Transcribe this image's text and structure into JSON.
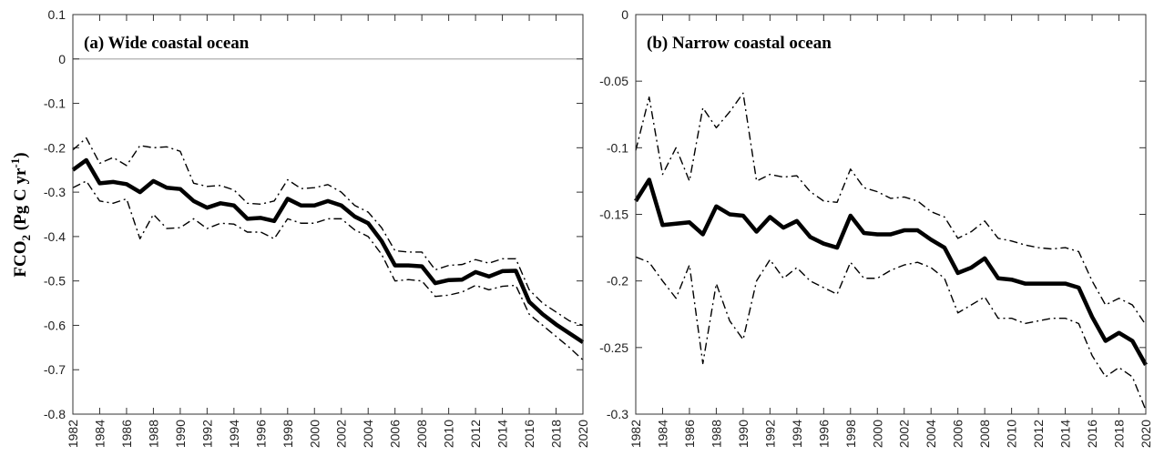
{
  "chart_data": [
    {
      "type": "line",
      "title": "(a) Wide coastal ocean",
      "ylabel_parts": [
        "FCO",
        "2",
        " (Pg C yr",
        "-1",
        ")"
      ],
      "x": [
        1982,
        1983,
        1984,
        1985,
        1986,
        1987,
        1988,
        1989,
        1990,
        1991,
        1992,
        1993,
        1994,
        1995,
        1996,
        1997,
        1998,
        1999,
        2000,
        2001,
        2002,
        2003,
        2004,
        2005,
        2006,
        2007,
        2008,
        2009,
        2010,
        2011,
        2012,
        2013,
        2014,
        2015,
        2016,
        2017,
        2018,
        2019,
        2020
      ],
      "xlim": [
        1982,
        2020
      ],
      "xticks": [
        1982,
        1984,
        1986,
        1988,
        1990,
        1992,
        1994,
        1996,
        1998,
        2000,
        2002,
        2004,
        2006,
        2008,
        2010,
        2012,
        2014,
        2016,
        2018,
        2020
      ],
      "ylim": [
        -0.8,
        0.1
      ],
      "yticks": [
        -0.8,
        -0.7,
        -0.6,
        -0.5,
        -0.4,
        -0.3,
        -0.2,
        -0.1,
        0,
        0.1
      ],
      "zero_line": true,
      "series": [
        {
          "color": "#000000",
          "style": "solid",
          "values": [
            -0.25,
            -0.228,
            -0.28,
            -0.277,
            -0.282,
            -0.3,
            -0.275,
            -0.29,
            -0.293,
            -0.32,
            -0.335,
            -0.325,
            -0.33,
            -0.36,
            -0.358,
            -0.365,
            -0.315,
            -0.33,
            -0.33,
            -0.32,
            -0.33,
            -0.355,
            -0.37,
            -0.41,
            -0.465,
            -0.465,
            -0.467,
            -0.505,
            -0.498,
            -0.497,
            -0.48,
            -0.49,
            -0.478,
            -0.477,
            -0.547,
            -0.575,
            -0.598,
            -0.618,
            -0.638
          ]
        },
        {
          "color": "#000000",
          "style": "dashdot",
          "values": [
            -0.205,
            -0.178,
            -0.235,
            -0.222,
            -0.24,
            -0.195,
            -0.2,
            -0.198,
            -0.208,
            -0.28,
            -0.287,
            -0.285,
            -0.295,
            -0.325,
            -0.327,
            -0.32,
            -0.272,
            -0.292,
            -0.29,
            -0.283,
            -0.3,
            -0.33,
            -0.345,
            -0.38,
            -0.432,
            -0.435,
            -0.435,
            -0.475,
            -0.465,
            -0.463,
            -0.452,
            -0.46,
            -0.45,
            -0.45,
            -0.52,
            -0.55,
            -0.57,
            -0.59,
            -0.6
          ]
        },
        {
          "color": "#000000",
          "style": "dashdot",
          "values": [
            -0.29,
            -0.275,
            -0.32,
            -0.325,
            -0.315,
            -0.405,
            -0.35,
            -0.382,
            -0.38,
            -0.36,
            -0.382,
            -0.37,
            -0.372,
            -0.39,
            -0.39,
            -0.405,
            -0.36,
            -0.37,
            -0.37,
            -0.36,
            -0.36,
            -0.385,
            -0.4,
            -0.44,
            -0.5,
            -0.497,
            -0.5,
            -0.535,
            -0.532,
            -0.525,
            -0.51,
            -0.52,
            -0.512,
            -0.51,
            -0.575,
            -0.6,
            -0.625,
            -0.65,
            -0.678
          ]
        }
      ]
    },
    {
      "type": "line",
      "title": "(b) Narrow coastal ocean",
      "x": [
        1982,
        1983,
        1984,
        1985,
        1986,
        1987,
        1988,
        1989,
        1990,
        1991,
        1992,
        1993,
        1994,
        1995,
        1996,
        1997,
        1998,
        1999,
        2000,
        2001,
        2002,
        2003,
        2004,
        2005,
        2006,
        2007,
        2008,
        2009,
        2010,
        2011,
        2012,
        2013,
        2014,
        2015,
        2016,
        2017,
        2018,
        2019,
        2020
      ],
      "xlim": [
        1982,
        2020
      ],
      "xticks": [
        1982,
        1984,
        1986,
        1988,
        1990,
        1992,
        1994,
        1996,
        1998,
        2000,
        2002,
        2004,
        2006,
        2008,
        2010,
        2012,
        2014,
        2016,
        2018,
        2020
      ],
      "ylim": [
        -0.3,
        0
      ],
      "yticks": [
        -0.3,
        -0.25,
        -0.2,
        -0.15,
        -0.1,
        -0.05,
        0
      ],
      "zero_line": false,
      "series": [
        {
          "color": "#000000",
          "style": "solid",
          "values": [
            -0.14,
            -0.124,
            -0.158,
            -0.157,
            -0.156,
            -0.165,
            -0.144,
            -0.15,
            -0.151,
            -0.163,
            -0.152,
            -0.16,
            -0.155,
            -0.167,
            -0.172,
            -0.175,
            -0.151,
            -0.164,
            -0.165,
            -0.165,
            -0.162,
            -0.162,
            -0.169,
            -0.175,
            -0.194,
            -0.19,
            -0.183,
            -0.198,
            -0.199,
            -0.202,
            -0.202,
            -0.202,
            -0.202,
            -0.205,
            -0.227,
            -0.245,
            -0.239,
            -0.245,
            -0.263
          ]
        },
        {
          "color": "#000000",
          "style": "dashdot",
          "values": [
            -0.102,
            -0.062,
            -0.12,
            -0.1,
            -0.125,
            -0.07,
            -0.085,
            -0.073,
            -0.059,
            -0.125,
            -0.12,
            -0.122,
            -0.121,
            -0.133,
            -0.14,
            -0.141,
            -0.116,
            -0.13,
            -0.133,
            -0.138,
            -0.137,
            -0.14,
            -0.148,
            -0.152,
            -0.168,
            -0.163,
            -0.155,
            -0.168,
            -0.17,
            -0.173,
            -0.175,
            -0.176,
            -0.175,
            -0.178,
            -0.2,
            -0.218,
            -0.213,
            -0.218,
            -0.233
          ]
        },
        {
          "color": "#000000",
          "style": "dashdot",
          "values": [
            -0.182,
            -0.186,
            -0.2,
            -0.213,
            -0.188,
            -0.262,
            -0.202,
            -0.23,
            -0.244,
            -0.2,
            -0.184,
            -0.198,
            -0.19,
            -0.2,
            -0.205,
            -0.21,
            -0.186,
            -0.198,
            -0.198,
            -0.192,
            -0.188,
            -0.186,
            -0.19,
            -0.198,
            -0.224,
            -0.218,
            -0.212,
            -0.228,
            -0.228,
            -0.232,
            -0.23,
            -0.228,
            -0.228,
            -0.232,
            -0.256,
            -0.272,
            -0.265,
            -0.272,
            -0.297
          ]
        }
      ]
    }
  ]
}
